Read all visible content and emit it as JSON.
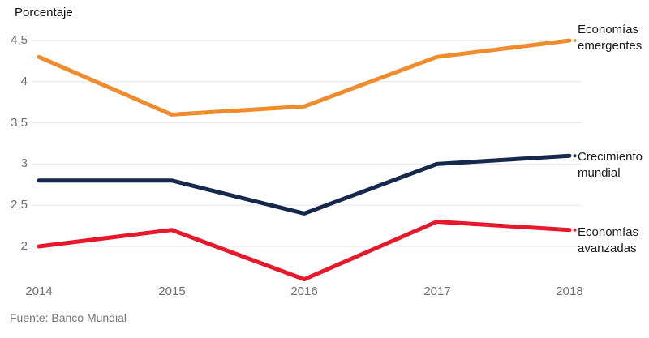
{
  "chart": {
    "title": "Porcentaje",
    "source": "Fuente: Banco Mundial"
  },
  "chart_data": {
    "type": "line",
    "title": "Porcentaje",
    "xlabel": "",
    "ylabel": "Porcentaje",
    "categories": [
      "2014",
      "2015",
      "2016",
      "2017",
      "2018"
    ],
    "series": [
      {
        "name": "Economías emergentes",
        "label_display": "Economías\nemergentes",
        "color": "#F08C2D",
        "values": [
          4.3,
          3.6,
          3.7,
          4.3,
          4.5
        ]
      },
      {
        "name": "Crecimiento mundial",
        "label_display": "Crecimiento\nmundial",
        "color": "#16294D",
        "values": [
          2.8,
          2.8,
          2.4,
          3.0,
          3.1
        ]
      },
      {
        "name": "Economías avanzadas",
        "label_display": "Economías\navanzadas",
        "color": "#E6182C",
        "values": [
          2.0,
          2.2,
          1.6,
          2.3,
          2.2
        ]
      }
    ],
    "yticks": [
      "2",
      "2,5",
      "3",
      "3,5",
      "4",
      "4,5"
    ],
    "ytick_values": [
      2,
      2.5,
      3,
      3.5,
      4,
      4.5
    ],
    "ylim": [
      1.5,
      4.5
    ],
    "grid": true,
    "legend_position": "right-end-of-lines",
    "source": "Fuente: Banco Mundial"
  },
  "colors": {
    "grid": "#E5E5E5",
    "axis_text": "#6E6E6E",
    "label_text": "#1A1A1A",
    "background": "#FFFFFF"
  }
}
